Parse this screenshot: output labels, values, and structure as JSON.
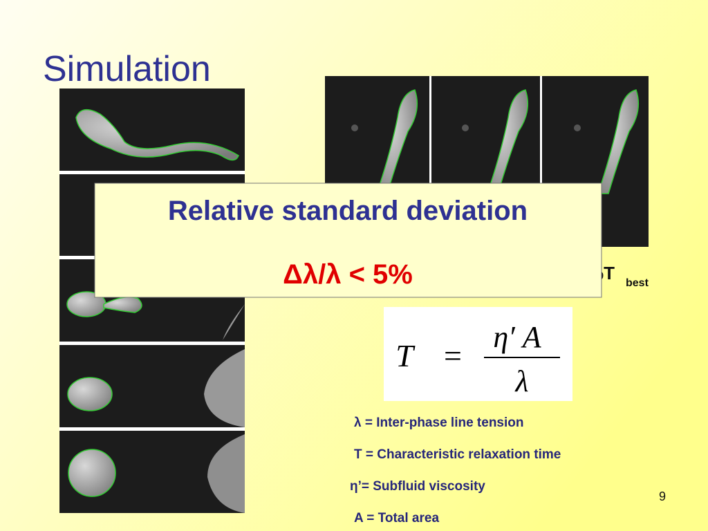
{
  "title": "Simulation",
  "callout": {
    "heading": "Relative standard deviation",
    "formula": "Δλ/λ < 5%"
  },
  "side_note": {
    "text": "%T",
    "subscript": "best"
  },
  "equation": {
    "lhs": "T",
    "relation": "=",
    "numerator": "η′ A",
    "denominator": "λ"
  },
  "definitions": [
    "λ = Inter-phase line tension",
    "T = Characteristic relaxation time",
    "η’= Subfluid viscosity",
    "A = Total area"
  ],
  "page_number": "9"
}
